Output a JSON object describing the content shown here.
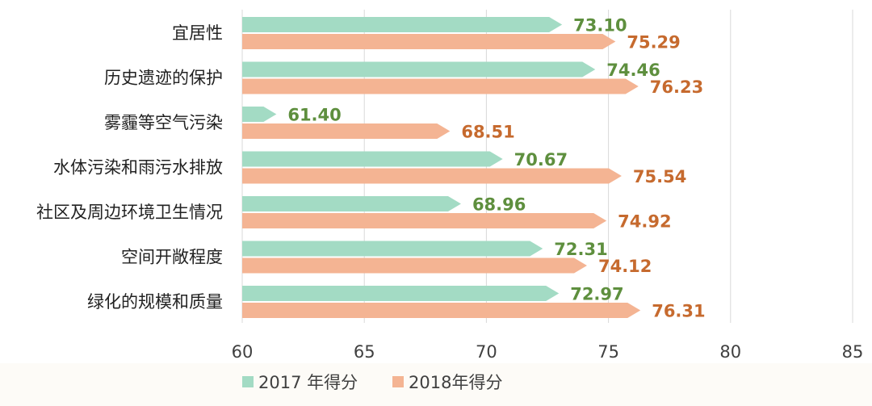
{
  "chart_data": {
    "type": "bar",
    "orientation": "horizontal",
    "title": "",
    "xlabel": "",
    "ylabel": "",
    "xlim": [
      60,
      85
    ],
    "x_ticks": [
      60,
      65,
      70,
      75,
      80,
      85
    ],
    "grid": "vertical",
    "legend_position": "bottom",
    "data_labels": true,
    "categories": [
      "宜居性",
      "历史遗迹的保护",
      "雾霾等空气污染",
      "水体污染和雨污水排放",
      "社区及周边环境卫生情况",
      "空间开敞程度",
      "绿化的规模和质量"
    ],
    "series": [
      {
        "name": "2017 年得分",
        "color": "#a3dbc4",
        "label_color": "#5e8f3e",
        "values": [
          73.1,
          74.46,
          61.4,
          70.67,
          68.96,
          72.31,
          72.97
        ]
      },
      {
        "name": "2018年得分",
        "color": "#f4b493",
        "label_color": "#c66a2e",
        "values": [
          75.29,
          76.23,
          68.51,
          75.54,
          74.92,
          74.12,
          76.31
        ]
      }
    ]
  }
}
